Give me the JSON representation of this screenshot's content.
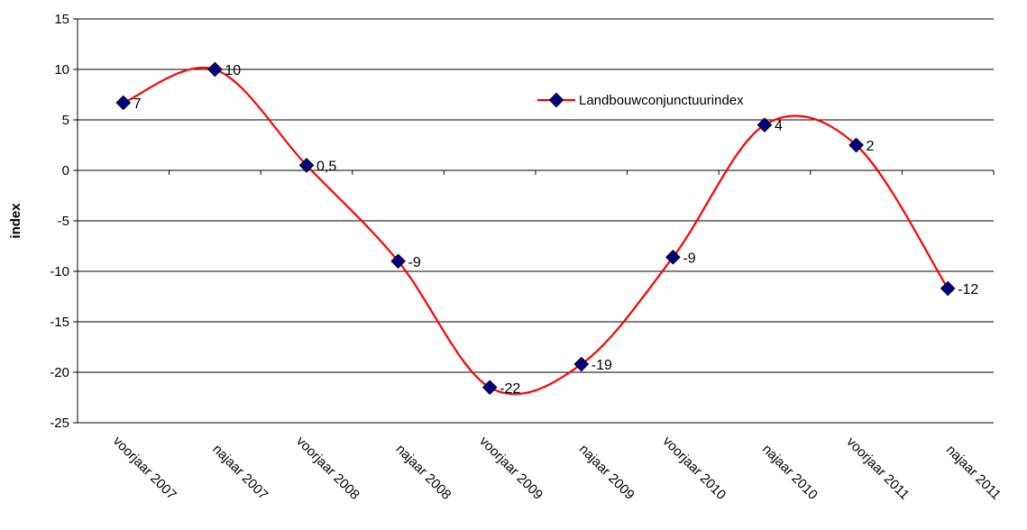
{
  "chart_data": {
    "type": "line",
    "smooth": true,
    "title": "",
    "xlabel": "",
    "ylabel": "index",
    "ylim": [
      -25,
      15
    ],
    "yticks": [
      15,
      10,
      5,
      0,
      -5,
      -10,
      -15,
      -20,
      -25
    ],
    "grid": "horizontal",
    "legend_position": "top-right",
    "categories": [
      "voorjaar 2007",
      "najaar 2007",
      "voorjaar 2008",
      "najaar 2008",
      "voorjaar 2009",
      "najaar 2009",
      "voorjaar 2010",
      "najaar 2010",
      "voorjaar 2011",
      "najaar 2011"
    ],
    "series": [
      {
        "name": "Landbouwconjunctuurindex",
        "values": [
          6.7,
          10,
          0.5,
          -9,
          -21.5,
          -19.2,
          -8.6,
          4.5,
          2.5,
          -11.7
        ],
        "data_labels": [
          "7",
          "10",
          "0,5",
          "-9",
          "-22",
          "-19",
          "-9",
          "4",
          "2",
          "-12"
        ],
        "line_color": "#ff0000",
        "marker_color": "#000080"
      }
    ]
  }
}
